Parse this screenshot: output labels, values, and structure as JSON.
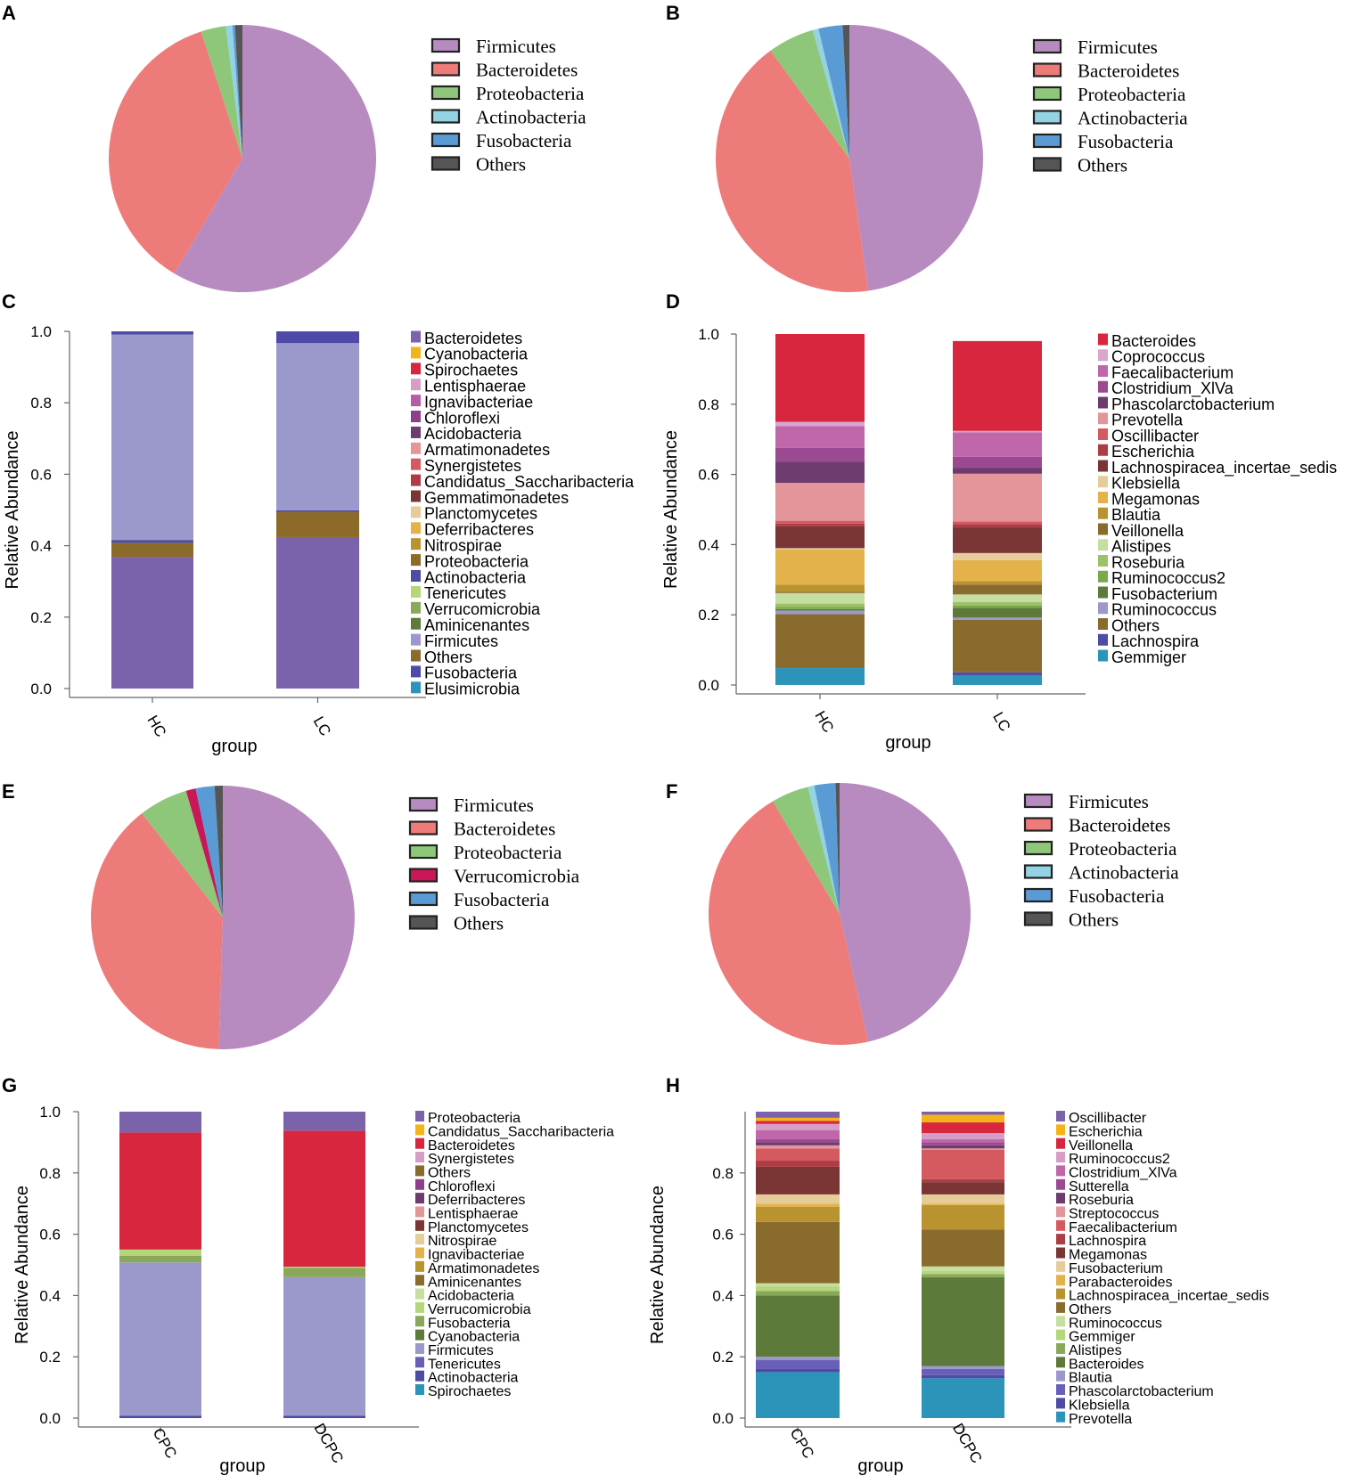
{
  "panels": {
    "A": "A",
    "B": "B",
    "C": "C",
    "D": "D",
    "E": "E",
    "F": "F",
    "G": "G",
    "H": "H"
  },
  "colors": {
    "Firmicutes_pie": "#b88bc0",
    "Bacteroidetes_pie": "#ed7b7a",
    "Proteobacteria_pie": "#8fc77a",
    "Actinobacteria_pie": "#93d3e3",
    "Fusobacteria_pie": "#5b9bd5",
    "Verrucomicrobia_pie": "#c8185a",
    "Others_pie": "#555555"
  },
  "chart_data": [
    {
      "panel": "A",
      "type": "pie",
      "title": "",
      "labels": [
        "Firmicutes",
        "Bacteroidetes",
        "Proteobacteria",
        "Actinobacteria",
        "Fusobacteria",
        "Others"
      ],
      "values": [
        58.5,
        36.5,
        3.0,
        0.8,
        0.3,
        0.9
      ]
    },
    {
      "panel": "B",
      "type": "pie",
      "title": "",
      "labels": [
        "Firmicutes",
        "Bacteroidetes",
        "Proteobacteria",
        "Actinobacteria",
        "Fusobacteria",
        "Others"
      ],
      "values": [
        47.5,
        42.0,
        5.6,
        0.7,
        2.9,
        0.8
      ]
    },
    {
      "panel": "C",
      "type": "bar",
      "stacked": true,
      "categories": [
        "HC",
        "LC"
      ],
      "xlabel": "group",
      "ylabel": "Relative Abundance",
      "ylim": [
        0,
        1.0
      ],
      "yticks": [
        "0.0",
        "0.2",
        "0.4",
        "0.6",
        "0.8",
        "1.0"
      ],
      "legend": [
        "Bacteroidetes",
        "Cyanobacteria",
        "Spirochaetes",
        "Lentisphaerae",
        "Ignavibacteriae",
        "Chloroflexi",
        "Acidobacteria",
        "Armatimonadetes",
        "Synergistetes",
        "Candidatus_Saccharibacteria",
        "Gemmatimonadetes",
        "Planctomycetes",
        "Deferribacteres",
        "Nitrospirae",
        "Proteobacteria",
        "Actinobacteria",
        "Tenericutes",
        "Verrucomicrobia",
        "Aminicenantes",
        "Firmicutes",
        "Others",
        "Fusobacteria",
        "Elusimicrobia"
      ],
      "legend_colors": [
        "#7b63ab",
        "#f5b31a",
        "#d7263d",
        "#d69ec7",
        "#b55ba8",
        "#8e3f8c",
        "#6e3b6e",
        "#e4959a",
        "#d45a60",
        "#ad3d45",
        "#7a3535",
        "#e6cc9a",
        "#e4b24a",
        "#b99330",
        "#8c6b2a",
        "#4d4ba3",
        "#b5d67a",
        "#8aa85a",
        "#5e7a3a",
        "#9b99cc",
        "#8a6b2e",
        "#4f4aa8",
        "#2b94b8"
      ],
      "series": [
        {
          "name": "Bacteroidetes",
          "values": [
            0.368,
            0.424
          ]
        },
        {
          "name": "Proteobacteria",
          "values": [
            0.04,
            0.07
          ]
        },
        {
          "name": "Actinobacteria",
          "values": [
            0.008,
            0.005
          ]
        },
        {
          "name": "Firmicutes",
          "values": [
            0.575,
            0.468
          ]
        },
        {
          "name": "Fusobacteria",
          "values": [
            0.009,
            0.033
          ]
        }
      ]
    },
    {
      "panel": "D",
      "type": "bar",
      "stacked": true,
      "categories": [
        "HC",
        "LC"
      ],
      "xlabel": "group",
      "ylabel": "Relative Abundance",
      "ylim": [
        0,
        1.0
      ],
      "yticks": [
        "0.0",
        "0.2",
        "0.4",
        "0.6",
        "0.8",
        "1.0"
      ],
      "legend": [
        "Bacteroides",
        "Coprococcus",
        "Faecalibacterium",
        "Clostridium_XlVa",
        "Phascolarctobacterium",
        "Prevotella",
        "Oscillibacter",
        "Escherichia",
        "Lachnospiracea_incertae_sedis",
        "Klebsiella",
        "Megamonas",
        "Blautia",
        "Veillonella",
        "Alistipes",
        "Roseburia",
        "Ruminococcus2",
        "Fusobacterium",
        "Ruminococcus",
        "Others",
        "Lachnospira",
        "Gemmiger"
      ],
      "legend_colors": [
        "#d7263d",
        "#d9a6cf",
        "#c067ab",
        "#9b4a92",
        "#6e3b6e",
        "#e4959a",
        "#d45a60",
        "#ad3d45",
        "#7a3535",
        "#e6cc9a",
        "#e4b24a",
        "#b99330",
        "#8a6b2e",
        "#c6dea0",
        "#9dc06a",
        "#7aa84a",
        "#5e7a3a",
        "#9b99cc",
        "#8a6b2e",
        "#4d4ba3",
        "#2b94b8"
      ],
      "series": [
        {
          "name": "Gemmiger",
          "values": [
            0.048,
            0.028
          ]
        },
        {
          "name": "Lachnospira",
          "values": [
            0.002,
            0.008
          ]
        },
        {
          "name": "Others",
          "values": [
            0.152,
            0.15
          ]
        },
        {
          "name": "Ruminococcus",
          "values": [
            0.01,
            0.006
          ]
        },
        {
          "name": "Fusobacterium",
          "values": [
            0.004,
            0.028
          ]
        },
        {
          "name": "Ruminococcus2",
          "values": [
            0.006,
            0.006
          ]
        },
        {
          "name": "Roseburia",
          "values": [
            0.01,
            0.01
          ]
        },
        {
          "name": "Alistipes",
          "values": [
            0.03,
            0.022
          ]
        },
        {
          "name": "Veillonella",
          "values": [
            0.004,
            0.028
          ]
        },
        {
          "name": "Blautia",
          "values": [
            0.02,
            0.01
          ]
        },
        {
          "name": "Megamonas",
          "values": [
            0.1,
            0.06
          ]
        },
        {
          "name": "Klebsiella",
          "values": [
            0.004,
            0.02
          ]
        },
        {
          "name": "Lachnospiracea_incertae_sedis",
          "values": [
            0.062,
            0.072
          ]
        },
        {
          "name": "Escherichia",
          "values": [
            0.008,
            0.01
          ]
        },
        {
          "name": "Oscillibacter",
          "values": [
            0.008,
            0.008
          ]
        },
        {
          "name": "Prevotella",
          "values": [
            0.108,
            0.136
          ]
        },
        {
          "name": "Phascolarctobacterium",
          "values": [
            0.06,
            0.016
          ]
        },
        {
          "name": "Clostridium_XlVa",
          "values": [
            0.04,
            0.032
          ]
        },
        {
          "name": "Faecalibacterium",
          "values": [
            0.062,
            0.07
          ]
        },
        {
          "name": "Coprococcus",
          "values": [
            0.012,
            0.004
          ]
        },
        {
          "name": "Bacteroides",
          "values": [
            0.25,
            0.256
          ]
        }
      ]
    },
    {
      "panel": "E",
      "type": "pie",
      "title": "",
      "labels": [
        "Firmicutes",
        "Bacteroidetes",
        "Proteobacteria",
        "Verrucomicrobia",
        "Fusobacteria",
        "Others"
      ],
      "values": [
        50.5,
        39.0,
        6.0,
        1.2,
        2.3,
        1.0
      ]
    },
    {
      "panel": "F",
      "type": "pie",
      "title": "",
      "labels": [
        "Firmicutes",
        "Bacteroidetes",
        "Proteobacteria",
        "Actinobacteria",
        "Fusobacteria",
        "Others"
      ],
      "values": [
        46.5,
        45.0,
        4.6,
        0.8,
        2.6,
        0.5
      ]
    },
    {
      "panel": "G",
      "type": "bar",
      "stacked": true,
      "categories": [
        "CPC",
        "DCPC"
      ],
      "xlabel": "group",
      "ylabel": "Relative Abundance",
      "ylim": [
        0,
        1.0
      ],
      "yticks": [
        "0.0",
        "0.2",
        "0.4",
        "0.6",
        "0.8",
        "1.0"
      ],
      "legend": [
        "Proteobacteria",
        "Candidatus_Saccharibacteria",
        "Bacteroidetes",
        "Synergistetes",
        "Others",
        "Chloroflexi",
        "Deferribacteres",
        "Lentisphaerae",
        "Planctomycetes",
        "Nitrospirae",
        "Ignavibacteriae",
        "Armatimonadetes",
        "Aminicenantes",
        "Acidobacteria",
        "Verrucomicrobia",
        "Fusobacteria",
        "Cyanobacteria",
        "Firmicutes",
        "Tenericutes",
        "Actinobacteria",
        "Spirochaetes"
      ],
      "legend_colors": [
        "#7b63ab",
        "#f5b31a",
        "#d7263d",
        "#d69ec7",
        "#8a6b2e",
        "#8e3f8c",
        "#6e3b6e",
        "#e4959a",
        "#7a3535",
        "#e6cc9a",
        "#e4b24a",
        "#b99330",
        "#8a6b2e",
        "#c6dea0",
        "#b5d67a",
        "#8aa85a",
        "#5e7a3a",
        "#9b99cc",
        "#6a5fb8",
        "#4d4ba3",
        "#2b94b8"
      ],
      "series": [
        {
          "name": "Actinobacteria",
          "values": [
            0.008,
            0.008
          ]
        },
        {
          "name": "Firmicutes",
          "values": [
            0.5,
            0.452
          ]
        },
        {
          "name": "Fusobacteria",
          "values": [
            0.022,
            0.03
          ]
        },
        {
          "name": "Verrucomicrobia",
          "values": [
            0.02,
            0.004
          ]
        },
        {
          "name": "Bacteroidetes",
          "values": [
            0.382,
            0.444
          ]
        },
        {
          "name": "Proteobacteria",
          "values": [
            0.068,
            0.062
          ]
        }
      ]
    },
    {
      "panel": "H",
      "type": "bar",
      "stacked": true,
      "categories": [
        "CPC",
        "DCPC"
      ],
      "xlabel": "group",
      "ylabel": "Relative Abundance",
      "ylim": [
        0,
        1.0
      ],
      "yticks": [
        "0.0",
        "0.2",
        "0.4",
        "0.6",
        "0.8"
      ],
      "legend": [
        "Oscillibacter",
        "Escherichia",
        "Veillonella",
        "Ruminococcus2",
        "Clostridium_XlVa",
        "Sutterella",
        "Roseburia",
        "Streptococcus",
        "Faecalibacterium",
        "Lachnospira",
        "Megamonas",
        "Fusobacterium",
        "Parabacteroides",
        "Lachnospiracea_incertae_sedis",
        "Others",
        "Ruminococcus",
        "Gemmiger",
        "Alistipes",
        "Bacteroides",
        "Blautia",
        "Phascolarctobacterium",
        "Klebsiella",
        "Prevotella"
      ],
      "legend_colors": [
        "#7b63ab",
        "#f5b31a",
        "#d7263d",
        "#d69ec7",
        "#c067ab",
        "#9b4a92",
        "#6e3b6e",
        "#e4959a",
        "#d45a60",
        "#ad3d45",
        "#7a3535",
        "#e6cc9a",
        "#e4b24a",
        "#b99330",
        "#8a6b2e",
        "#c6dea0",
        "#b5d67a",
        "#8aa85a",
        "#5e7a3a",
        "#9b99cc",
        "#6a5fb8",
        "#4d4ba3",
        "#2b94b8"
      ],
      "series": [
        {
          "name": "Prevotella",
          "values": [
            0.15,
            0.13
          ]
        },
        {
          "name": "Klebsiella",
          "values": [
            0.01,
            0.01
          ]
        },
        {
          "name": "Phascolarctobacterium",
          "values": [
            0.03,
            0.02
          ]
        },
        {
          "name": "Blautia",
          "values": [
            0.01,
            0.01
          ]
        },
        {
          "name": "Bacteroides",
          "values": [
            0.2,
            0.29
          ]
        },
        {
          "name": "Alistipes",
          "values": [
            0.015,
            0.01
          ]
        },
        {
          "name": "Gemmiger",
          "values": [
            0.015,
            0.01
          ]
        },
        {
          "name": "Ruminococcus",
          "values": [
            0.01,
            0.015
          ]
        },
        {
          "name": "Others",
          "values": [
            0.2,
            0.12
          ]
        },
        {
          "name": "Lachnospiracea_incertae_sedis",
          "values": [
            0.05,
            0.08
          ]
        },
        {
          "name": "Parabacteroides",
          "values": [
            0.01,
            0.005
          ]
        },
        {
          "name": "Fusobacterium",
          "values": [
            0.03,
            0.03
          ]
        },
        {
          "name": "Megamonas",
          "values": [
            0.09,
            0.04
          ]
        },
        {
          "name": "Lachnospira",
          "values": [
            0.02,
            0.01
          ]
        },
        {
          "name": "Faecalibacterium",
          "values": [
            0.04,
            0.095
          ]
        },
        {
          "name": "Streptococcus",
          "values": [
            0.01,
            0.005
          ]
        },
        {
          "name": "Roseburia",
          "values": [
            0.01,
            0.01
          ]
        },
        {
          "name": "Sutterella",
          "values": [
            0.01,
            0.01
          ]
        },
        {
          "name": "Clostridium_XlVa",
          "values": [
            0.03,
            0.01
          ]
        },
        {
          "name": "Ruminococcus2",
          "values": [
            0.02,
            0.02
          ]
        },
        {
          "name": "Veillonella",
          "values": [
            0.01,
            0.035
          ]
        },
        {
          "name": "Escherichia",
          "values": [
            0.01,
            0.025
          ]
        },
        {
          "name": "Oscillibacter",
          "values": [
            0.02,
            0.01
          ]
        }
      ]
    }
  ]
}
